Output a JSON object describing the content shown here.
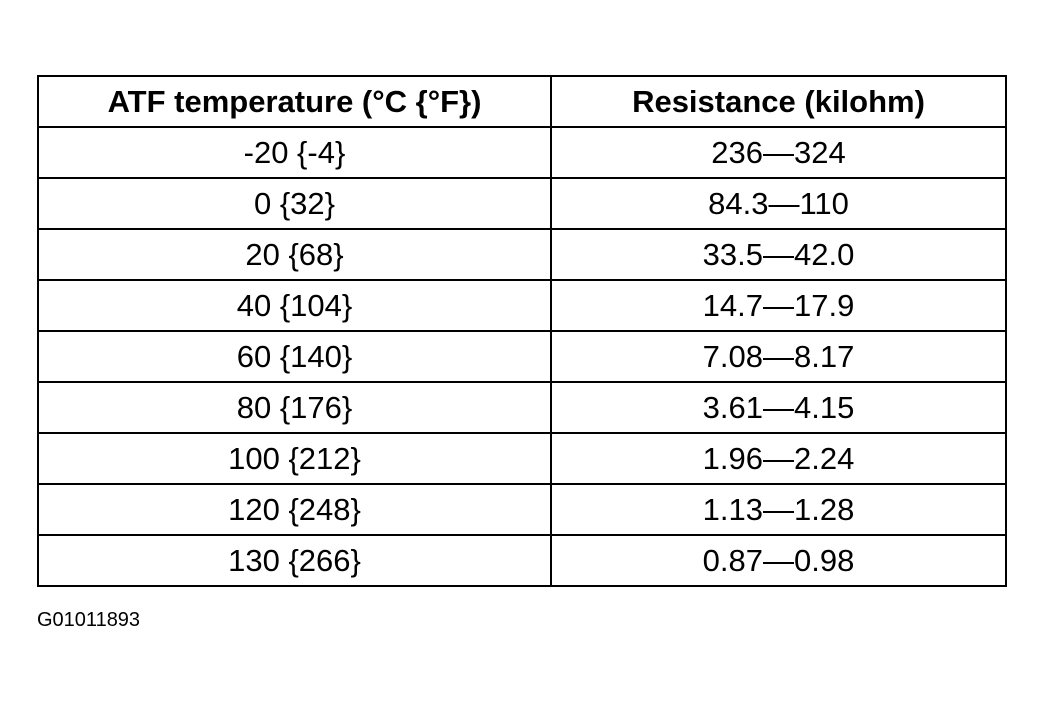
{
  "table": {
    "header": [
      "ATF temperature (°C {°F})",
      "Resistance (kilohm)"
    ],
    "rows": [
      [
        "-20 {-4}",
        "236—324"
      ],
      [
        "0 {32}",
        "84.3—110"
      ],
      [
        "20 {68}",
        "33.5—42.0"
      ],
      [
        "40 {104}",
        "14.7—17.9"
      ],
      [
        "60 {140}",
        "7.08—8.17"
      ],
      [
        "80 {176}",
        "3.61—4.15"
      ],
      [
        "100 {212}",
        "1.96—2.24"
      ],
      [
        "120 {248}",
        "1.13—1.28"
      ],
      [
        "130 {266}",
        "0.87—0.98"
      ]
    ]
  },
  "figure_id": "G01011893"
}
